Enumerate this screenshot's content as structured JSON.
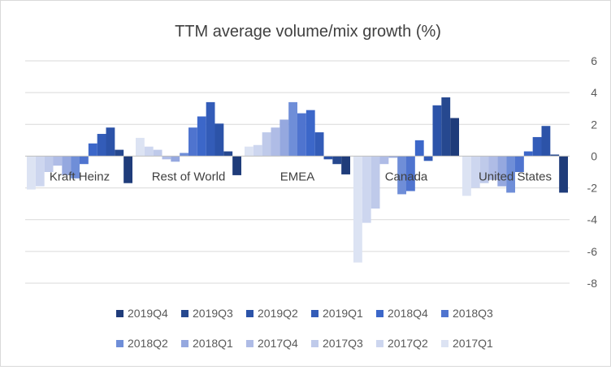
{
  "chart_data": {
    "type": "bar",
    "title": "TTM average volume/mix growth (%)",
    "xlabel": "",
    "ylabel": "",
    "ylim": [
      -8,
      6
    ],
    "yticks": [
      -8,
      -6,
      -4,
      -2,
      0,
      2,
      4,
      6
    ],
    "y_axis_position": "right",
    "grid": true,
    "legend_position": "bottom",
    "categories": [
      "Kraft Heinz",
      "Rest of World",
      "EMEA",
      "Canada",
      "United States"
    ],
    "series": [
      {
        "name": "2017Q1",
        "color": "#dce3f3",
        "values": [
          -2.1,
          1.15,
          0.6,
          -6.7,
          -2.5
        ]
      },
      {
        "name": "2017Q2",
        "color": "#cdd6ef",
        "values": [
          -1.9,
          0.6,
          0.7,
          -4.2,
          -2.0
        ]
      },
      {
        "name": "2017Q3",
        "color": "#bfcaea",
        "values": [
          -1.0,
          0.4,
          1.5,
          -3.3,
          -1.7
        ]
      },
      {
        "name": "2017Q4",
        "color": "#afbce6",
        "values": [
          -0.6,
          -0.2,
          1.8,
          -0.5,
          -1.5
        ]
      },
      {
        "name": "2018Q1",
        "color": "#95a8df",
        "values": [
          -1.2,
          -0.35,
          2.3,
          -0.1,
          -1.9
        ]
      },
      {
        "name": "2018Q2",
        "color": "#6f8ed8",
        "values": [
          -1.4,
          0.2,
          3.4,
          -2.4,
          -2.3
        ]
      },
      {
        "name": "2018Q3",
        "color": "#4f74cf",
        "values": [
          -0.5,
          1.8,
          2.7,
          -2.2,
          -1.0
        ]
      },
      {
        "name": "2018Q4",
        "color": "#3c67c9",
        "values": [
          0.8,
          2.5,
          2.9,
          1.0,
          0.3
        ]
      },
      {
        "name": "2019Q1",
        "color": "#335cb8",
        "values": [
          1.4,
          3.4,
          1.5,
          -0.3,
          1.2
        ]
      },
      {
        "name": "2019Q2",
        "color": "#2c53a8",
        "values": [
          1.8,
          2.05,
          -0.2,
          3.2,
          1.9
        ]
      },
      {
        "name": "2019Q3",
        "color": "#26488f",
        "values": [
          0.4,
          0.3,
          -0.5,
          3.7,
          0.1
        ]
      },
      {
        "name": "2019Q4",
        "color": "#1f3c7a",
        "values": [
          -1.7,
          -1.2,
          -1.15,
          2.4,
          -2.3
        ]
      }
    ],
    "legend_order": [
      "2019Q4",
      "2019Q3",
      "2019Q2",
      "2019Q1",
      "2018Q4",
      "2018Q3",
      "2018Q2",
      "2018Q1",
      "2017Q4",
      "2017Q3",
      "2017Q2",
      "2017Q1"
    ]
  }
}
